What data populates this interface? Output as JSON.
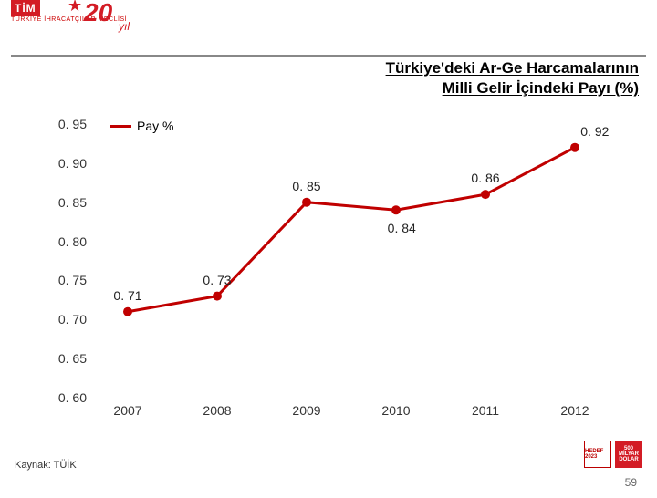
{
  "header": {
    "org_abbr": "TİM",
    "org_sub": "TÜRKİYE İHRACATÇILAR MECLİSİ",
    "anniversary_num": "20",
    "anniversary_word": "yıl"
  },
  "title_line1": "Türkiye'deki Ar-Ge Harcamalarının",
  "title_line2": "Milli Gelir İçindeki Payı (%)",
  "chart": {
    "type": "line",
    "series_name": "Pay %",
    "line_color": "#c00000",
    "line_width": 3,
    "marker_size": 5,
    "background_color": "#ffffff",
    "x_categories": [
      "2007",
      "2008",
      "2009",
      "2010",
      "2011",
      "2012"
    ],
    "y_values": [
      0.71,
      0.73,
      0.85,
      0.84,
      0.86,
      0.92
    ],
    "data_labels": [
      "0. 71",
      "0. 73",
      "0. 85",
      "0. 84",
      "0. 86",
      "0. 92"
    ],
    "y_axis": {
      "min": 0.6,
      "max": 0.95,
      "step": 0.05,
      "tick_labels": [
        "0. 60",
        "0. 65",
        "0. 70",
        "0. 75",
        "0. 80",
        "0. 85",
        "0. 90",
        "0. 95"
      ]
    },
    "axis_fontsize": 14,
    "label_fontsize": 14
  },
  "source_label": "Kaynak: TÜİK",
  "page_number": "59",
  "corner": {
    "hedef": "HEDEF 2023",
    "dolar1": "500",
    "dolar2": "MİLYAR",
    "dolar3": "DOLAR"
  }
}
